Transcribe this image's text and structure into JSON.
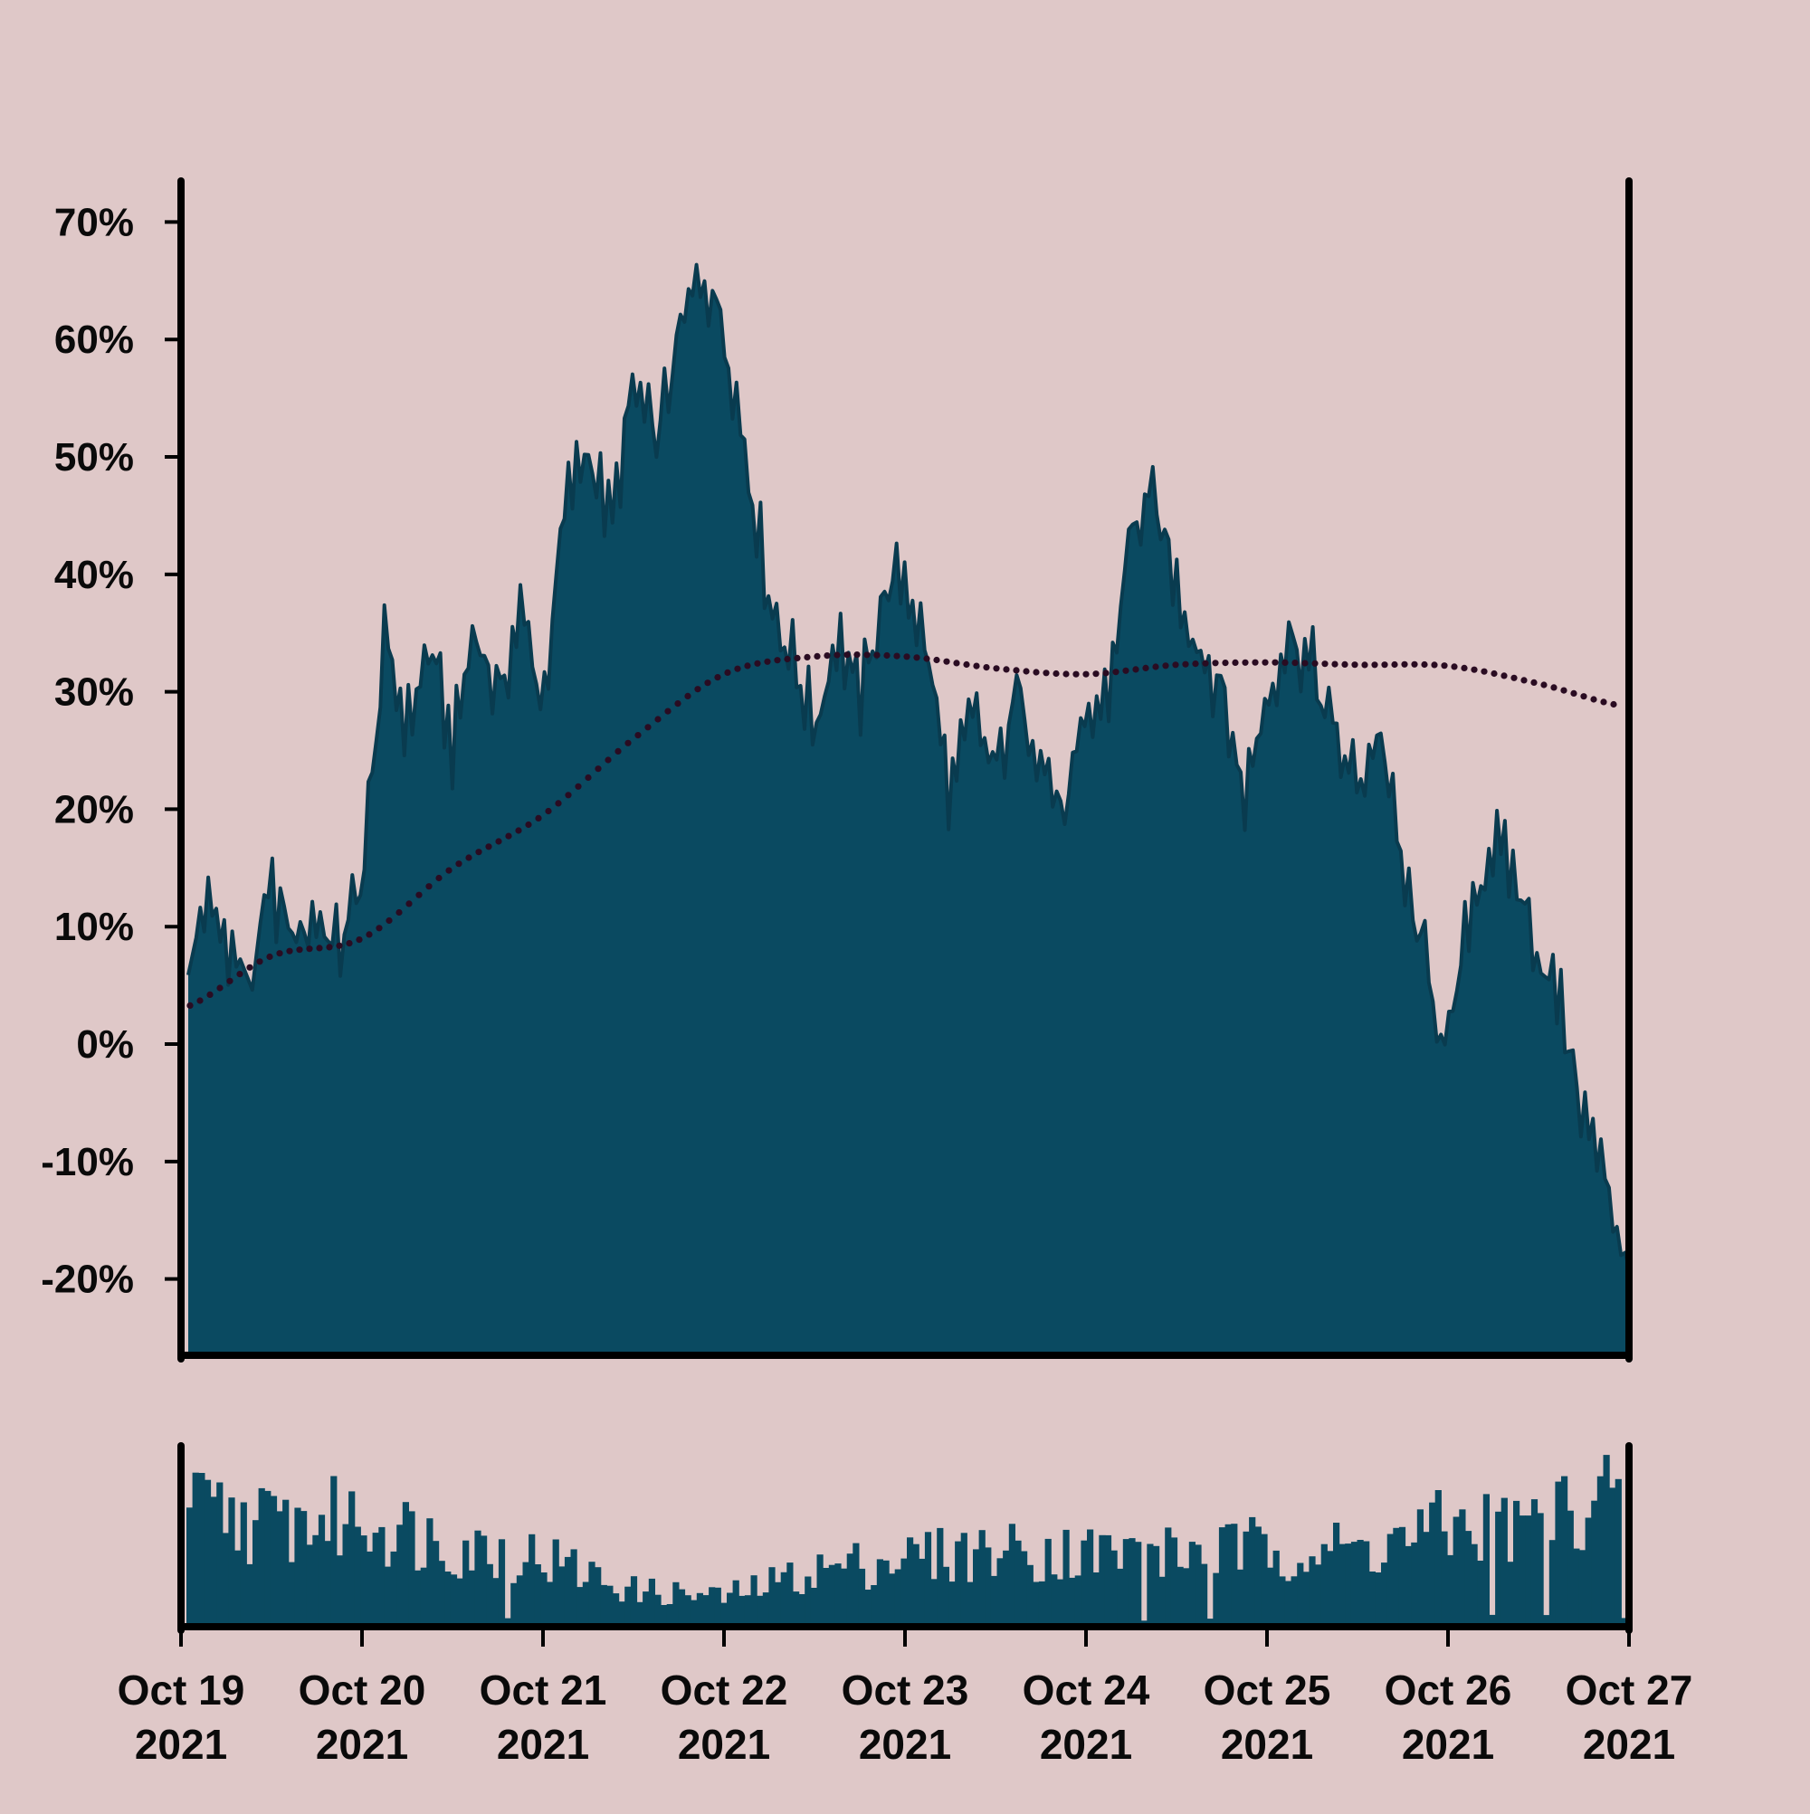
{
  "colors": {
    "background": "#dfc8c8",
    "area_fill": "#0a4a61",
    "area_line": "#093b4f",
    "volume_fill": "#0a4a61",
    "average_dots": "#2a0c22",
    "axis": "#000000"
  },
  "chart_data": [
    {
      "type": "area",
      "name": "main-panel",
      "y_tick_labels": [
        "70%",
        "60%",
        "50%",
        "40%",
        "30%",
        "20%",
        "10%",
        "0%",
        "-10%",
        "-20%"
      ],
      "y_ticks": [
        70,
        60,
        50,
        40,
        30,
        20,
        10,
        0,
        -10,
        -20
      ],
      "ylim": [
        -26.5,
        73.5
      ],
      "xlim": [
        "2021-10-19",
        "2021-10-27"
      ],
      "grid": false,
      "legend": "none",
      "series": [
        {
          "kind": "area",
          "x": [
            "2021-10-19T00:00",
            "2021-10-19T03:00",
            "2021-10-19T06:00",
            "2021-10-19T09:00",
            "2021-10-19T12:00",
            "2021-10-19T15:00",
            "2021-10-19T18:00",
            "2021-10-19T21:00",
            "2021-10-20T00:00",
            "2021-10-20T03:00",
            "2021-10-20T06:00",
            "2021-10-20T09:00",
            "2021-10-20T12:00",
            "2021-10-20T15:00",
            "2021-10-20T18:00",
            "2021-10-20T21:00",
            "2021-10-21T00:00",
            "2021-10-21T03:00",
            "2021-10-21T06:00",
            "2021-10-21T09:00",
            "2021-10-21T12:00",
            "2021-10-21T15:00",
            "2021-10-21T18:00",
            "2021-10-21T21:00",
            "2021-10-22T00:00",
            "2021-10-22T03:00",
            "2021-10-22T06:00",
            "2021-10-22T09:00",
            "2021-10-22T12:00",
            "2021-10-22T15:00",
            "2021-10-22T18:00",
            "2021-10-22T21:00",
            "2021-10-23T00:00",
            "2021-10-23T03:00",
            "2021-10-23T06:00",
            "2021-10-23T09:00",
            "2021-10-23T12:00",
            "2021-10-23T15:00",
            "2021-10-23T18:00",
            "2021-10-23T21:00",
            "2021-10-24T00:00",
            "2021-10-24T03:00",
            "2021-10-24T06:00",
            "2021-10-24T09:00",
            "2021-10-24T12:00",
            "2021-10-24T15:00",
            "2021-10-24T18:00",
            "2021-10-24T21:00",
            "2021-10-25T00:00",
            "2021-10-25T03:00",
            "2021-10-25T06:00",
            "2021-10-25T09:00",
            "2021-10-25T12:00",
            "2021-10-25T15:00",
            "2021-10-25T18:00",
            "2021-10-25T21:00",
            "2021-10-26T00:00",
            "2021-10-26T03:00",
            "2021-10-26T06:00",
            "2021-10-26T09:00",
            "2021-10-26T12:00",
            "2021-10-26T15:00",
            "2021-10-26T18:00",
            "2021-10-26T21:00",
            "2021-10-27T00:00"
          ],
          "values": [
            3,
            12,
            9,
            5,
            13,
            9,
            11,
            8,
            14,
            34,
            27,
            34,
            25,
            36,
            29,
            37,
            29,
            46,
            51,
            44,
            56,
            51,
            60,
            66,
            61,
            50,
            38,
            33,
            27,
            35,
            29,
            38,
            40,
            33,
            21,
            28,
            23,
            30,
            25,
            19,
            27,
            30,
            44,
            46,
            39,
            34,
            30,
            21,
            30,
            35,
            32,
            26,
            22,
            27,
            14,
            7,
            -1,
            12,
            17,
            14,
            8,
            3,
            -6,
            -12,
            -19
          ]
        },
        {
          "kind": "dotted-line",
          "x": [
            "2021-10-19T00:00",
            "2021-10-19T12:00",
            "2021-10-20T00:00",
            "2021-10-20T12:00",
            "2021-10-21T00:00",
            "2021-10-21T12:00",
            "2021-10-22T00:00",
            "2021-10-22T12:00",
            "2021-10-23T00:00",
            "2021-10-23T12:00",
            "2021-10-24T00:00",
            "2021-10-24T12:00",
            "2021-10-25T00:00",
            "2021-10-25T12:00",
            "2021-10-26T00:00",
            "2021-10-26T12:00",
            "2021-10-27T00:00"
          ],
          "values": [
            3,
            7.5,
            9,
            15,
            19.5,
            26,
            31.5,
            33,
            33,
            32,
            31.5,
            32.3,
            32.5,
            32.3,
            32.2,
            30.7,
            28.7
          ]
        }
      ]
    },
    {
      "type": "bar",
      "name": "volume-panel",
      "series": [
        {
          "x": [
            "2021-10-19T00:00",
            "2021-10-19T12:00",
            "2021-10-20T00:00",
            "2021-10-20T12:00",
            "2021-10-21T00:00",
            "2021-10-21T12:00",
            "2021-10-22T00:00",
            "2021-10-22T12:00",
            "2021-10-23T00:00",
            "2021-10-23T12:00",
            "2021-10-24T00:00",
            "2021-10-24T12:00",
            "2021-10-25T00:00",
            "2021-10-25T12:00",
            "2021-10-26T00:00",
            "2021-10-26T12:00",
            "2021-10-27T00:00"
          ],
          "values": [
            0.72,
            0.62,
            0.66,
            0.5,
            0.42,
            0.22,
            0.18,
            0.34,
            0.42,
            0.46,
            0.45,
            0.44,
            0.48,
            0.46,
            0.6,
            0.62,
            0.9
          ]
        }
      ]
    }
  ],
  "x_axis": {
    "ticks": [
      {
        "date": "2021-10-19",
        "line1": "Oct 19",
        "line2": "2021"
      },
      {
        "date": "2021-10-20",
        "line1": "Oct 20",
        "line2": "2021"
      },
      {
        "date": "2021-10-21",
        "line1": "Oct 21",
        "line2": "2021"
      },
      {
        "date": "2021-10-22",
        "line1": "Oct 22",
        "line2": "2021"
      },
      {
        "date": "2021-10-23",
        "line1": "Oct 23",
        "line2": "2021"
      },
      {
        "date": "2021-10-24",
        "line1": "Oct 24",
        "line2": "2021"
      },
      {
        "date": "2021-10-25",
        "line1": "Oct 25",
        "line2": "2021"
      },
      {
        "date": "2021-10-26",
        "line1": "Oct 26",
        "line2": "2021"
      },
      {
        "date": "2021-10-27",
        "line1": "Oct 27",
        "line2": "2021"
      }
    ]
  }
}
